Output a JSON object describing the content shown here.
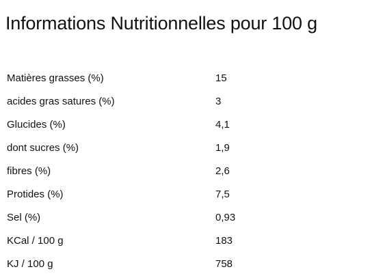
{
  "document": {
    "title": "Informations Nutritionnelles pour 100 g"
  },
  "nutrition": {
    "rows": [
      {
        "label": "Matières grasses (%)",
        "value": "15"
      },
      {
        "label": "acides gras satures (%)",
        "value": "3"
      },
      {
        "label": "Glucides (%)",
        "value": "4,1"
      },
      {
        "label": "dont sucres (%)",
        "value": "1,9"
      },
      {
        "label": "fibres (%)",
        "value": "2,6"
      },
      {
        "label": "Protides (%)",
        "value": "7,5"
      },
      {
        "label": "Sel (%)",
        "value": "0,93"
      },
      {
        "label": "KCal / 100 g",
        "value": "183"
      },
      {
        "label": "KJ / 100 g",
        "value": "758"
      }
    ]
  }
}
